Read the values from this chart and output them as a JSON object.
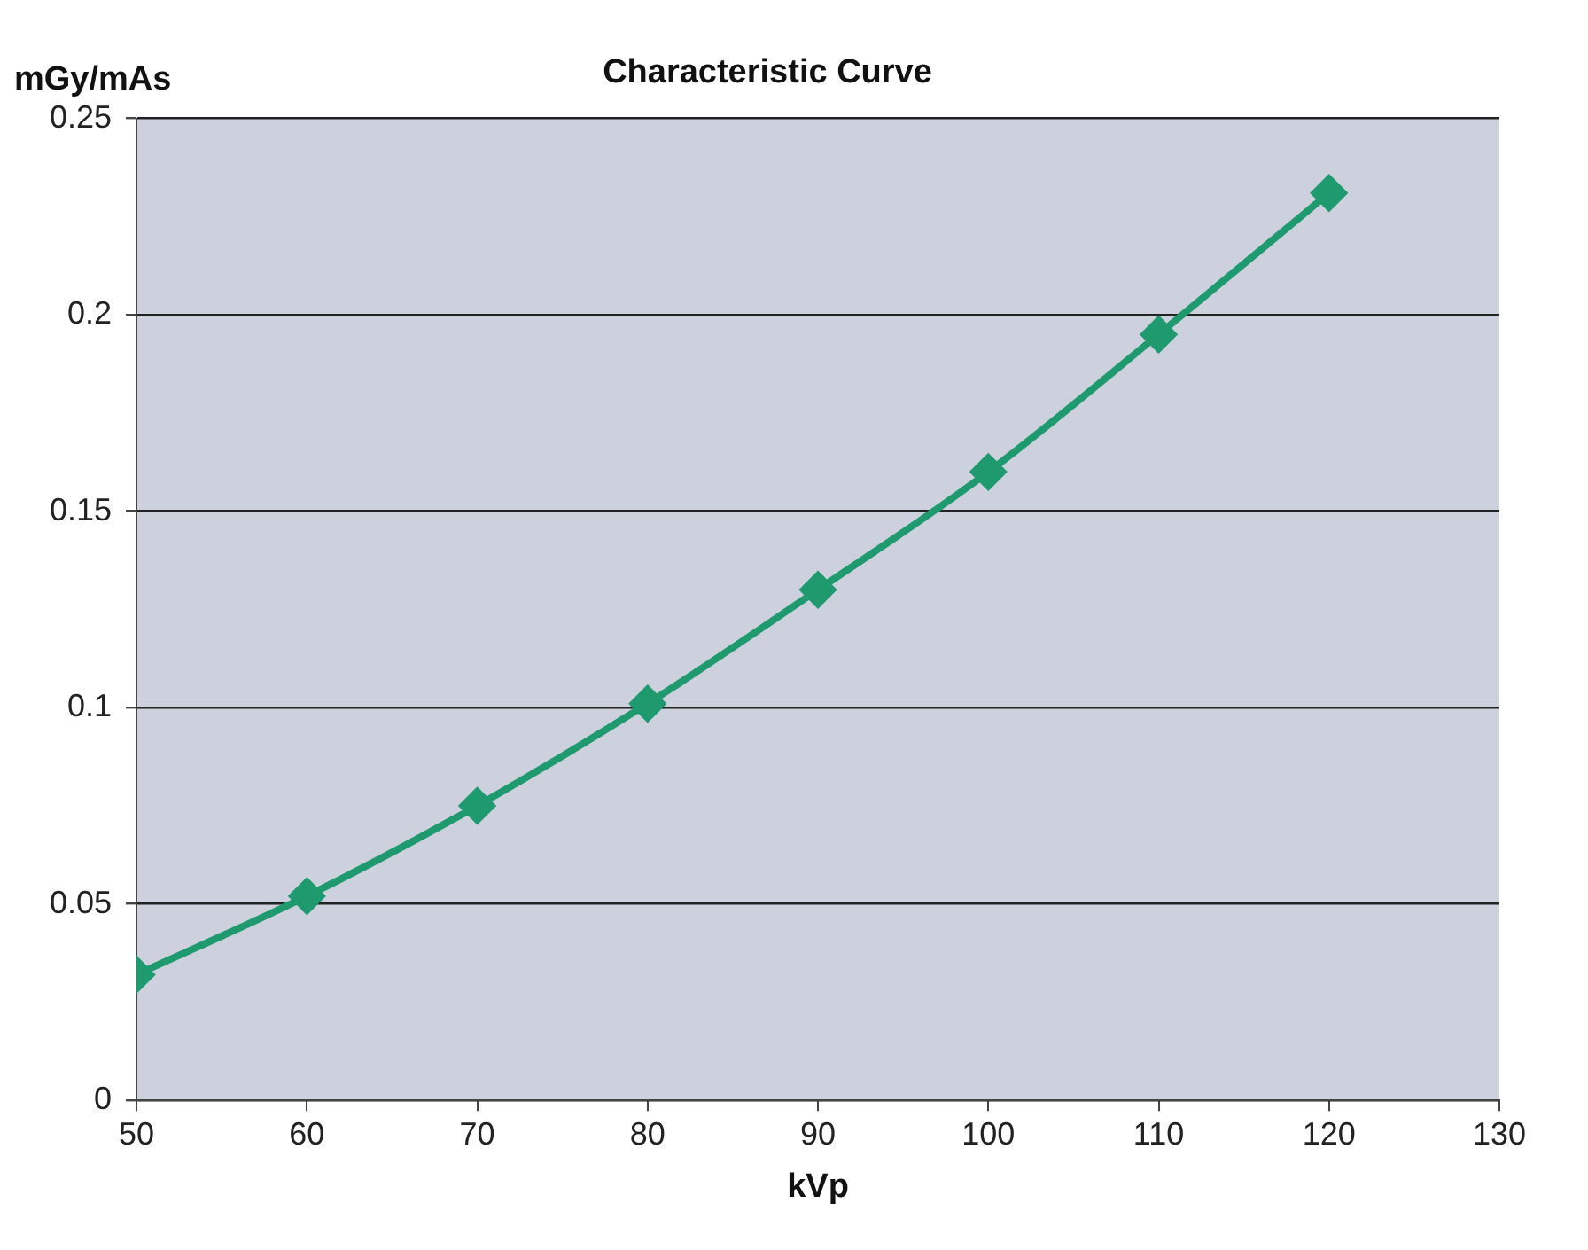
{
  "chart_data": {
    "type": "line",
    "title": "Characteristic Curve",
    "xlabel": "kVp",
    "ylabel": "mGy/mAs",
    "x": [
      50,
      60,
      70,
      80,
      90,
      100,
      110,
      120
    ],
    "series": [
      {
        "color": "#1f9a6e",
        "values": [
          0.032,
          0.052,
          0.075,
          0.101,
          0.13,
          0.16,
          0.195,
          0.231
        ]
      }
    ],
    "xlim": [
      50,
      130
    ],
    "xticks": [
      50,
      60,
      70,
      80,
      90,
      100,
      110,
      120,
      130
    ],
    "ylim": [
      0,
      0.25
    ],
    "yticks": [
      0,
      0.05,
      0.1,
      0.15,
      0.2,
      0.25
    ],
    "grid": "y",
    "legend": false,
    "marker": "diamond",
    "line_style": "solid"
  }
}
